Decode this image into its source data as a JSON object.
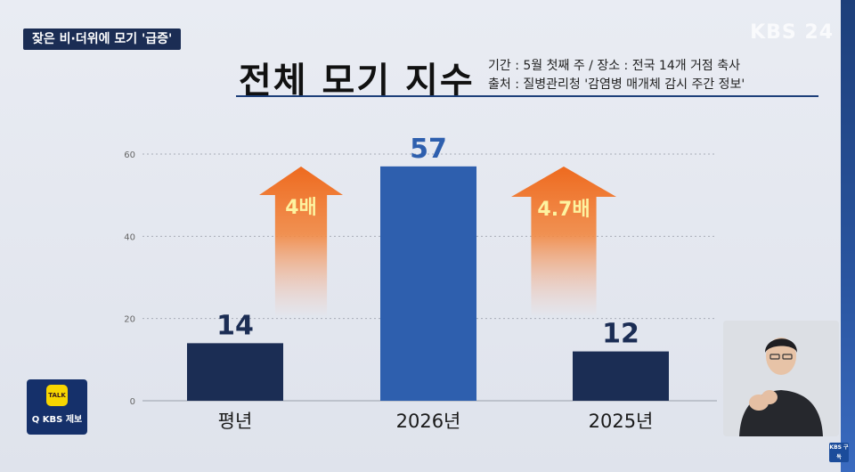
{
  "news_tag": "잦은 비·더위에 모기 '급증'",
  "logo": "KBS 24",
  "title": "전체 모기 지수",
  "meta": {
    "period": "기간 : 5월 첫째 주 / 장소 : 전국 14개 거점 축사",
    "source": "출처 : 질병관리청 '감염병 매개체 감시 주간 정보'"
  },
  "chart_data": {
    "type": "bar",
    "title": "전체 모기 지수",
    "categories": [
      "평년",
      "2026년",
      "2025년"
    ],
    "values": [
      14,
      57,
      12
    ],
    "value_labels": [
      "14",
      "57",
      "12"
    ],
    "ylim": [
      0,
      60
    ],
    "yticks": [
      0,
      20,
      40,
      60
    ],
    "grid": true,
    "bar_colors": [
      "#1b2d54",
      "#2e5fae",
      "#1b2d54"
    ],
    "value_label_colors": [
      "#1b2d54",
      "#2e5fae",
      "#1b2d54"
    ],
    "annotations": [
      {
        "text": "4배",
        "between": [
          "평년",
          "2026년"
        ]
      },
      {
        "text": "4.7배",
        "between": [
          "2025년",
          "2026년"
        ]
      }
    ]
  },
  "kakao": {
    "icon": "TALK",
    "label": "Q KBS 제보"
  },
  "kbs_badge": "KBS 구독"
}
